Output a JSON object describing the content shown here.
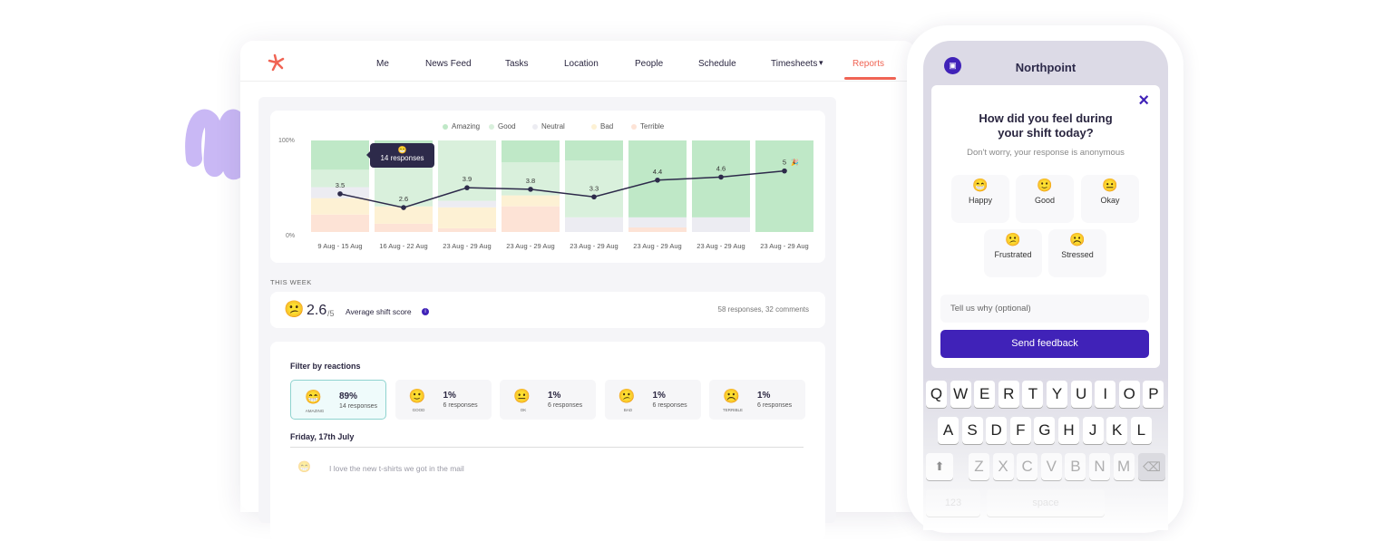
{
  "nav": {
    "items": [
      "Me",
      "News Feed",
      "Tasks",
      "Location",
      "People",
      "Schedule",
      "Timesheets",
      "Reports"
    ],
    "active": "Reports",
    "logo": "asterisk-logo"
  },
  "colors": {
    "amazing": "#bfe8c7",
    "good": "#d9f0dc",
    "neutral": "#ececf2",
    "bad": "#fdf1d4",
    "terrible": "#fde3d6",
    "accent": "#f06454",
    "primary": "#4022b8",
    "line": "#2d2a4a"
  },
  "chart_data": {
    "type": "bar",
    "stacked": true,
    "legend": [
      "Amazing",
      "Good",
      "Neutral",
      "Bad",
      "Terrible"
    ],
    "legend_position": "top",
    "y_ticks": [
      "100%",
      "0%"
    ],
    "ylim": [
      0,
      100
    ],
    "categories": [
      "9 Aug - 15 Aug",
      "16 Aug - 22 Aug",
      "23 Aug - 29 Aug",
      "23 Aug - 29 Aug",
      "23 Aug - 29 Aug",
      "23 Aug - 29 Aug",
      "23 Aug - 29 Aug",
      "23 Aug - 29 Aug"
    ],
    "series": [
      {
        "name": "Terrible",
        "values": [
          19,
          9,
          4,
          28,
          0,
          5,
          0,
          0
        ]
      },
      {
        "name": "Bad",
        "values": [
          18,
          19,
          23,
          12,
          0,
          0,
          0,
          0
        ]
      },
      {
        "name": "Neutral",
        "values": [
          12,
          0,
          7,
          0,
          16,
          11,
          16,
          0
        ]
      },
      {
        "name": "Good",
        "values": [
          19,
          62,
          66,
          36,
          62,
          0,
          0,
          0
        ]
      },
      {
        "name": "Amazing",
        "values": [
          32,
          10,
          0,
          24,
          22,
          84,
          84,
          100
        ]
      }
    ],
    "line": {
      "values": [
        3.5,
        2.6,
        3.9,
        3.8,
        3.3,
        4.4,
        4.6,
        5
      ],
      "labels": [
        "3.5",
        "2.6",
        "3.9",
        "3.8",
        "3.3",
        "4.4",
        "4.6",
        "5"
      ]
    },
    "tooltip": {
      "emoji": "😁",
      "text": "14 responses"
    },
    "last_point_emoji": "🎉"
  },
  "week": {
    "heading": "THIS WEEK",
    "emoji": "😕",
    "score": "2.6",
    "out_of": "/5",
    "label": "Average shift score",
    "summary": "58 responses, 32 comments"
  },
  "filter": {
    "title": "Filter by reactions",
    "reactions": [
      {
        "emoji": "😁",
        "label": "AMAZING",
        "percent": "89%",
        "responses": "14 responses",
        "selected": true
      },
      {
        "emoji": "🙂",
        "label": "GOOD",
        "percent": "1%",
        "responses": "6 responses"
      },
      {
        "emoji": "😐",
        "label": "OK",
        "percent": "1%",
        "responses": "6 responses"
      },
      {
        "emoji": "😕",
        "label": "BAD",
        "percent": "1%",
        "responses": "6 responses"
      },
      {
        "emoji": "☹️",
        "label": "TERRIBLE",
        "percent": "1%",
        "responses": "6 responses"
      }
    ],
    "date": "Friday, 17th July",
    "comment": {
      "emoji": "😁",
      "text": "I love the new t-shirts we got in the mail"
    }
  },
  "phone": {
    "title": "Northpoint",
    "question": "How did you feel during your shift today?",
    "subtitle": "Don't worry, your response is anonymous",
    "moods": [
      {
        "emoji": "😁",
        "label": "Happy"
      },
      {
        "emoji": "🙂",
        "label": "Good"
      },
      {
        "emoji": "😐",
        "label": "Okay"
      },
      {
        "emoji": "😕",
        "label": "Frustrated"
      },
      {
        "emoji": "☹️",
        "label": "Stressed"
      }
    ],
    "placeholder": "Tell us why (optional)",
    "send": "Send feedback",
    "keyboard": [
      [
        "Q",
        "W",
        "E",
        "R",
        "T",
        "Y",
        "U",
        "I",
        "O",
        "P"
      ],
      [
        "A",
        "S",
        "D",
        "F",
        "G",
        "H",
        "J",
        "K",
        "L"
      ],
      [
        "Z",
        "X",
        "C",
        "V",
        "B",
        "N",
        "M"
      ]
    ],
    "kb_bottom": [
      "123",
      "space"
    ]
  }
}
